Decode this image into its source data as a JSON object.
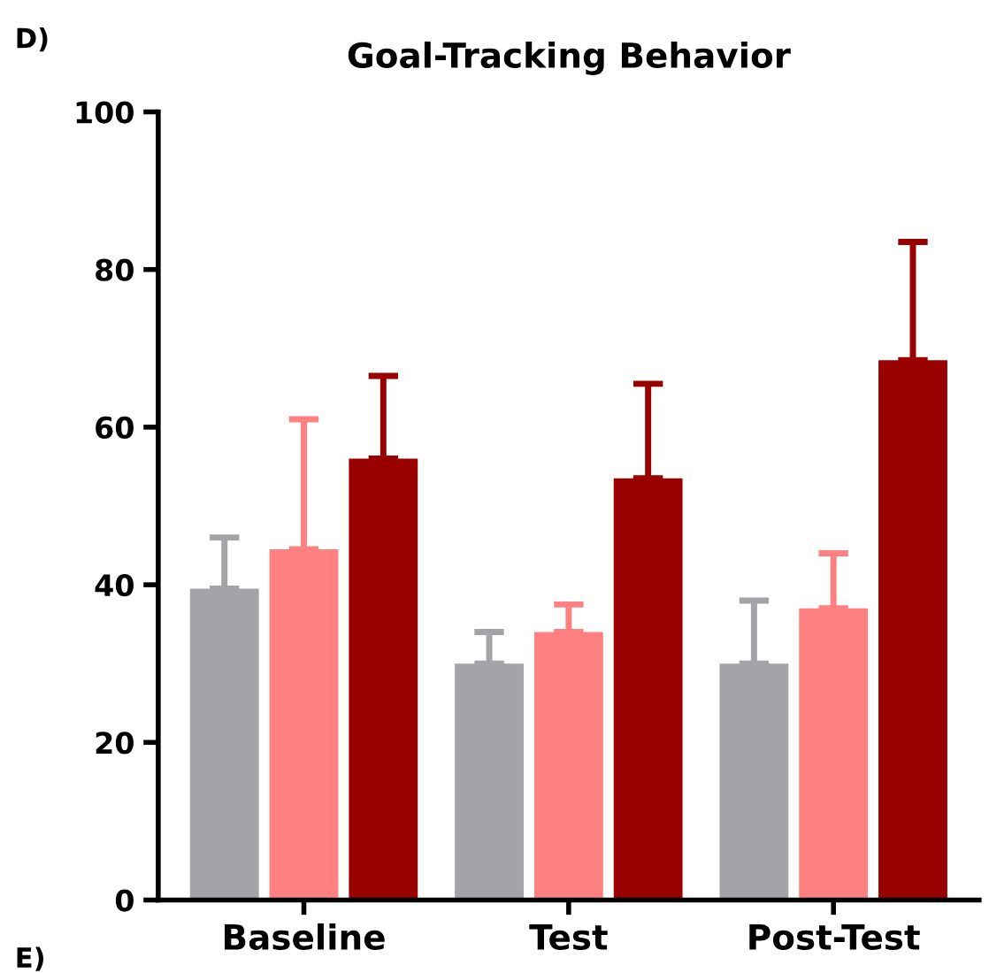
{
  "chart_data": {
    "type": "bar",
    "title": "Goal-Tracking Behavior",
    "categories": [
      "Baseline",
      "Test",
      "Post-Test"
    ],
    "series": [
      {
        "color": "#a3a3a8",
        "values": [
          39.5,
          30,
          30
        ],
        "errors": [
          [
            39.5,
            46
          ],
          [
            30,
            34
          ],
          [
            30,
            38
          ]
        ]
      },
      {
        "color": "#ff8080",
        "values": [
          44.5,
          34,
          37
        ],
        "errors": [
          [
            44.5,
            61
          ],
          [
            34,
            37.5
          ],
          [
            37,
            44
          ]
        ]
      },
      {
        "color": "#990000",
        "values": [
          56,
          53.5,
          68.5
        ],
        "errors": [
          [
            56,
            66.5
          ],
          [
            53.5,
            65.5
          ],
          [
            68.5,
            83.5
          ]
        ]
      }
    ],
    "ylim": [
      0,
      100
    ],
    "yticks": [
      0,
      20,
      40,
      60,
      80,
      100
    ],
    "grid": false,
    "annotations": [
      "D)",
      "E)"
    ]
  }
}
